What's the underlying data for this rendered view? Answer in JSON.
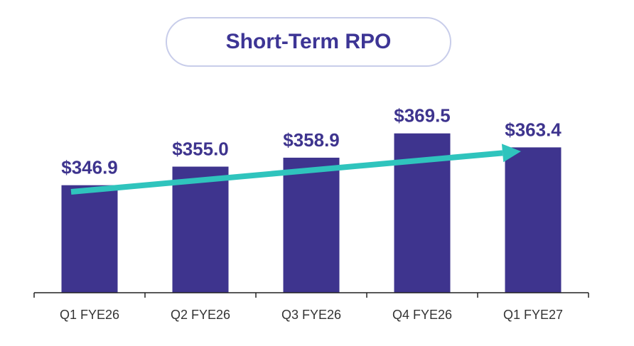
{
  "title": "Short-Term RPO",
  "colors": {
    "bar": "#3e348e",
    "value_label": "#3e348e",
    "trend_arrow": "#2fc4bd",
    "axis": "#222222",
    "category_label": "#333333",
    "title_text": "#3d3595",
    "title_border": "#c8cdea"
  },
  "chart_data": {
    "type": "bar",
    "title": "Short-Term RPO",
    "categories": [
      "Q1 FYE26",
      "Q2 FYE26",
      "Q3 FYE26",
      "Q4 FYE26",
      "Q1 FYE27"
    ],
    "values": [
      346.9,
      355.0,
      358.9,
      369.5,
      363.4
    ],
    "value_labels": [
      "$346.9",
      "$355.0",
      "$358.9",
      "$369.5",
      "$363.4"
    ],
    "xlabel": "",
    "ylabel": "",
    "ylim": [
      300,
      375
    ],
    "grid": false,
    "legend": "none",
    "trend_arrow": {
      "from_category": "Q1 FYE26",
      "to_category": "Q1 FYE27",
      "direction": "up"
    }
  }
}
